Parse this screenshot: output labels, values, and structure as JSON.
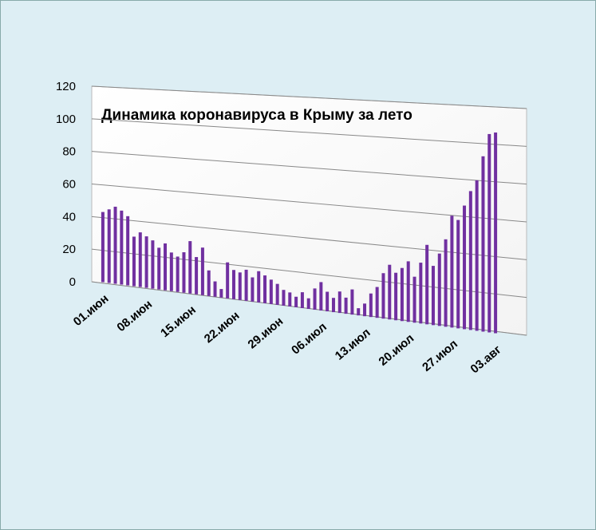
{
  "chart_data": {
    "type": "bar",
    "title": "Динамика  коронавируса в Крыму за лето",
    "categories": [
      "01.июн",
      null,
      null,
      null,
      null,
      null,
      null,
      "08.июн",
      null,
      null,
      null,
      null,
      null,
      null,
      "15.июн",
      null,
      null,
      null,
      null,
      null,
      null,
      "22.июн",
      null,
      null,
      null,
      null,
      null,
      null,
      "29.июн",
      null,
      null,
      null,
      null,
      null,
      null,
      "06.июл",
      null,
      null,
      null,
      null,
      null,
      null,
      "13.июл",
      null,
      null,
      null,
      null,
      null,
      null,
      "20.июл",
      null,
      null,
      null,
      null,
      null,
      null,
      "27.июл",
      null,
      null,
      null,
      null,
      null,
      null,
      "03.авг"
    ],
    "values": [
      43,
      45,
      47,
      45,
      42,
      30,
      33,
      31,
      29,
      25,
      28,
      23,
      21,
      24,
      31,
      22,
      28,
      15,
      9,
      5,
      21,
      17,
      16,
      18,
      14,
      18,
      16,
      14,
      12,
      9,
      8,
      6,
      9,
      6,
      12,
      16,
      11,
      8,
      12,
      9,
      14,
      4,
      7,
      13,
      17,
      25,
      30,
      26,
      29,
      33,
      25,
      33,
      43,
      32,
      39,
      47,
      60,
      58,
      66,
      74,
      80,
      93,
      105,
      106
    ],
    "color": "#7030a0",
    "ylim": [
      0,
      120
    ],
    "yticks": [
      0,
      20,
      40,
      60,
      80,
      100,
      120
    ],
    "grid": true
  }
}
